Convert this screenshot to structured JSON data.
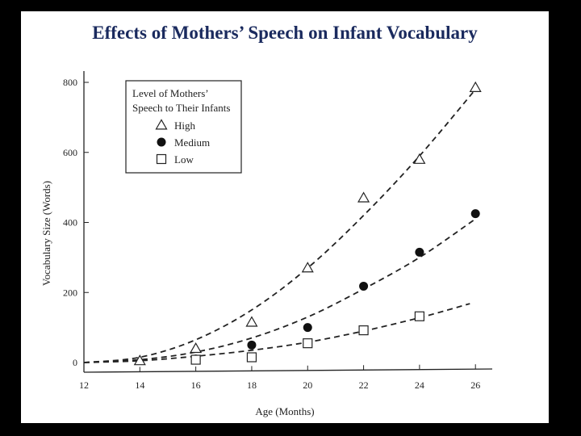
{
  "chart_data": {
    "type": "scatter",
    "title": "Effects of Mothers’ Speech on Infant Vocabulary",
    "xlabel": "Age (Months)",
    "ylabel": "Vocabulary Size (Words)",
    "xlim": [
      12,
      26.6
    ],
    "ylim": [
      0,
      800
    ],
    "xticks": [
      12,
      14,
      16,
      18,
      20,
      22,
      24,
      26
    ],
    "yticks": [
      0,
      200,
      400,
      600,
      800
    ],
    "legend": {
      "title_line1": "Level of Mothers’",
      "title_line2": "Speech to Their Infants",
      "position": "top-left"
    },
    "series": [
      {
        "name": "High",
        "marker": "triangle-open",
        "x": [
          14,
          16,
          18,
          20,
          22,
          24,
          26
        ],
        "values": [
          5,
          40,
          115,
          270,
          470,
          580,
          785
        ],
        "fit": {
          "x": [
            12,
            14,
            16,
            18,
            20,
            22,
            24,
            26
          ],
          "values": [
            0,
            15,
            65,
            150,
            270,
            420,
            590,
            780
          ]
        }
      },
      {
        "name": "Medium",
        "marker": "circle-filled",
        "x": [
          16,
          18,
          20,
          22,
          24,
          26
        ],
        "values": [
          10,
          50,
          100,
          218,
          315,
          425
        ],
        "fit": {
          "x": [
            12,
            14,
            16,
            18,
            20,
            22,
            24,
            26
          ],
          "values": [
            0,
            8,
            30,
            70,
            130,
            210,
            300,
            410
          ]
        }
      },
      {
        "name": "Low",
        "marker": "square-open",
        "x": [
          16,
          18,
          20,
          22,
          24
        ],
        "values": [
          8,
          15,
          55,
          92,
          132
        ],
        "fit": {
          "x": [
            12,
            14,
            16,
            18,
            20,
            22,
            24,
            25.8
          ],
          "values": [
            0,
            5,
            18,
            35,
            58,
            90,
            128,
            168
          ]
        }
      }
    ]
  }
}
